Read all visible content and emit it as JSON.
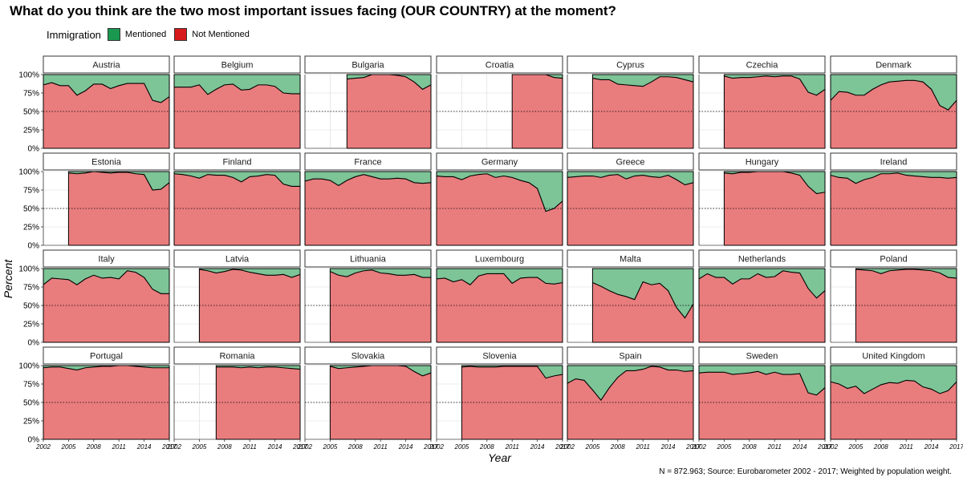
{
  "title": "What do you think are the two most important issues facing (OUR COUNTRY) at the moment?",
  "legend": {
    "title": "Immigration",
    "items": [
      {
        "label": "Mentioned",
        "color": "#1a9850"
      },
      {
        "label": "Not Mentioned",
        "color": "#d7191c"
      }
    ]
  },
  "colors": {
    "mentioned_fill": "#7dc497",
    "not_mentioned_fill": "#e97c7d"
  },
  "caption": "N = 872.963; Source: Eurobarometer 2002 - 2017; Weighted by population weight.",
  "chart_data": {
    "type": "area",
    "facet_layout": "4 rows x 7 columns",
    "xlabel": "Year",
    "ylabel": "Percent",
    "x_ticks": [
      "2002",
      "2005",
      "2008",
      "2011",
      "2014",
      "2017"
    ],
    "y_ticks": [
      "0%",
      "25%",
      "50%",
      "75%",
      "100%"
    ],
    "xlim": [
      2002,
      2017
    ],
    "ylim": [
      0,
      100
    ],
    "reference_line": 50,
    "grid": true,
    "series_note": "values = percent Not Mentioned; remainder to 100% = Mentioned",
    "panels": [
      {
        "country": "Austria",
        "x": [
          2002,
          2003,
          2004,
          2005,
          2006,
          2007,
          2008,
          2009,
          2010,
          2011,
          2012,
          2013,
          2014,
          2015,
          2016,
          2017
        ],
        "values": [
          86,
          89,
          85,
          85,
          72,
          78,
          87,
          87,
          81,
          85,
          88,
          88,
          88,
          65,
          62,
          70
        ]
      },
      {
        "country": "Belgium",
        "x": [
          2002,
          2003,
          2004,
          2005,
          2006,
          2007,
          2008,
          2009,
          2010,
          2011,
          2012,
          2013,
          2014,
          2015,
          2016,
          2017
        ],
        "values": [
          83,
          83,
          83,
          86,
          73,
          80,
          86,
          87,
          79,
          80,
          86,
          86,
          84,
          75,
          74,
          74
        ]
      },
      {
        "country": "Bulgaria",
        "x": [
          2007,
          2008,
          2009,
          2010,
          2011,
          2012,
          2013,
          2014,
          2015,
          2016,
          2017
        ],
        "values": [
          94,
          95,
          96,
          100,
          100,
          100,
          99,
          97,
          90,
          80,
          86
        ]
      },
      {
        "country": "Croatia",
        "x": [
          2011,
          2012,
          2013,
          2014,
          2015,
          2016,
          2017
        ],
        "values": [
          100,
          100,
          100,
          100,
          100,
          96,
          95
        ]
      },
      {
        "country": "Cyprus",
        "x": [
          2005,
          2006,
          2007,
          2008,
          2009,
          2010,
          2011,
          2012,
          2013,
          2014,
          2015,
          2016,
          2017
        ],
        "values": [
          95,
          93,
          93,
          87,
          86,
          85,
          84,
          90,
          97,
          97,
          96,
          93,
          90
        ]
      },
      {
        "country": "Czechia",
        "x": [
          2005,
          2006,
          2007,
          2008,
          2009,
          2010,
          2011,
          2012,
          2013,
          2014,
          2015,
          2016,
          2017
        ],
        "values": [
          98,
          95,
          96,
          96,
          97,
          98,
          97,
          98,
          98,
          94,
          76,
          72,
          80
        ]
      },
      {
        "country": "Denmark",
        "x": [
          2002,
          2003,
          2004,
          2005,
          2006,
          2007,
          2008,
          2009,
          2010,
          2011,
          2012,
          2013,
          2014,
          2015,
          2016,
          2017
        ],
        "values": [
          65,
          77,
          76,
          72,
          72,
          80,
          86,
          90,
          91,
          92,
          92,
          90,
          80,
          58,
          52,
          65
        ]
      },
      {
        "country": "Estonia",
        "x": [
          2005,
          2006,
          2007,
          2008,
          2009,
          2010,
          2011,
          2012,
          2013,
          2014,
          2015,
          2016,
          2017
        ],
        "values": [
          98,
          97,
          98,
          100,
          99,
          98,
          99,
          99,
          97,
          96,
          75,
          76,
          85
        ]
      },
      {
        "country": "Finland",
        "x": [
          2002,
          2003,
          2004,
          2005,
          2006,
          2007,
          2008,
          2009,
          2010,
          2011,
          2012,
          2013,
          2014,
          2015,
          2016,
          2017
        ],
        "values": [
          97,
          96,
          94,
          91,
          96,
          95,
          95,
          92,
          86,
          93,
          94,
          96,
          95,
          83,
          80,
          80
        ]
      },
      {
        "country": "France",
        "x": [
          2002,
          2003,
          2004,
          2005,
          2006,
          2007,
          2008,
          2009,
          2010,
          2011,
          2012,
          2013,
          2014,
          2015,
          2016,
          2017
        ],
        "values": [
          87,
          90,
          90,
          88,
          81,
          88,
          93,
          96,
          93,
          90,
          90,
          91,
          90,
          85,
          84,
          85
        ]
      },
      {
        "country": "Germany",
        "x": [
          2002,
          2003,
          2004,
          2005,
          2006,
          2007,
          2008,
          2009,
          2010,
          2011,
          2012,
          2013,
          2014,
          2015,
          2016,
          2017
        ],
        "values": [
          94,
          93,
          93,
          89,
          94,
          96,
          97,
          92,
          94,
          92,
          88,
          85,
          77,
          46,
          50,
          60
        ]
      },
      {
        "country": "Greece",
        "x": [
          2002,
          2003,
          2004,
          2005,
          2006,
          2007,
          2008,
          2009,
          2010,
          2011,
          2012,
          2013,
          2014,
          2015,
          2016,
          2017
        ],
        "values": [
          92,
          93,
          94,
          94,
          92,
          95,
          96,
          90,
          94,
          95,
          93,
          92,
          95,
          89,
          82,
          85
        ]
      },
      {
        "country": "Hungary",
        "x": [
          2005,
          2006,
          2007,
          2008,
          2009,
          2010,
          2011,
          2012,
          2013,
          2014,
          2015,
          2016,
          2017
        ],
        "values": [
          98,
          97,
          99,
          99,
          100,
          100,
          100,
          100,
          98,
          95,
          80,
          70,
          72
        ]
      },
      {
        "country": "Ireland",
        "x": [
          2002,
          2003,
          2004,
          2005,
          2006,
          2007,
          2008,
          2009,
          2010,
          2011,
          2012,
          2013,
          2014,
          2015,
          2016,
          2017
        ],
        "values": [
          95,
          92,
          91,
          84,
          89,
          92,
          97,
          97,
          98,
          95,
          94,
          93,
          92,
          92,
          91,
          92
        ]
      },
      {
        "country": "Italy",
        "x": [
          2002,
          2003,
          2004,
          2005,
          2006,
          2007,
          2008,
          2009,
          2010,
          2011,
          2012,
          2013,
          2014,
          2015,
          2016,
          2017
        ],
        "values": [
          78,
          87,
          86,
          85,
          78,
          86,
          91,
          87,
          88,
          86,
          97,
          95,
          88,
          72,
          66,
          66
        ]
      },
      {
        "country": "Latvia",
        "x": [
          2005,
          2006,
          2007,
          2008,
          2009,
          2010,
          2011,
          2012,
          2013,
          2014,
          2015,
          2016,
          2017
        ],
        "values": [
          99,
          97,
          94,
          96,
          99,
          98,
          95,
          93,
          91,
          91,
          92,
          88,
          92
        ]
      },
      {
        "country": "Lithuania",
        "x": [
          2005,
          2006,
          2007,
          2008,
          2009,
          2010,
          2011,
          2012,
          2013,
          2014,
          2015,
          2016,
          2017
        ],
        "values": [
          96,
          91,
          89,
          94,
          97,
          98,
          94,
          93,
          91,
          91,
          92,
          88,
          88
        ]
      },
      {
        "country": "Luxembourg",
        "x": [
          2002,
          2003,
          2004,
          2005,
          2006,
          2007,
          2008,
          2009,
          2010,
          2011,
          2012,
          2013,
          2014,
          2015,
          2016,
          2017
        ],
        "values": [
          86,
          87,
          82,
          85,
          78,
          90,
          93,
          93,
          93,
          80,
          87,
          88,
          88,
          80,
          79,
          81
        ]
      },
      {
        "country": "Malta",
        "x": [
          2005,
          2006,
          2007,
          2008,
          2009,
          2010,
          2011,
          2012,
          2013,
          2014,
          2015,
          2016,
          2017
        ],
        "values": [
          81,
          76,
          70,
          65,
          62,
          58,
          82,
          78,
          80,
          70,
          47,
          33,
          52
        ]
      },
      {
        "country": "Netherlands",
        "x": [
          2002,
          2003,
          2004,
          2005,
          2006,
          2007,
          2008,
          2009,
          2010,
          2011,
          2012,
          2013,
          2014,
          2015,
          2016,
          2017
        ],
        "values": [
          86,
          93,
          88,
          88,
          79,
          86,
          86,
          93,
          88,
          89,
          97,
          95,
          94,
          73,
          60,
          70
        ]
      },
      {
        "country": "Poland",
        "x": [
          2005,
          2006,
          2007,
          2008,
          2009,
          2010,
          2011,
          2012,
          2013,
          2014,
          2015,
          2016,
          2017
        ],
        "values": [
          99,
          98,
          97,
          93,
          97,
          98,
          99,
          99,
          98,
          97,
          94,
          88,
          87
        ]
      },
      {
        "country": "Portugal",
        "x": [
          2002,
          2003,
          2004,
          2005,
          2006,
          2007,
          2008,
          2009,
          2010,
          2011,
          2012,
          2013,
          2014,
          2015,
          2016,
          2017
        ],
        "values": [
          97,
          98,
          98,
          96,
          94,
          97,
          98,
          99,
          99,
          100,
          100,
          99,
          98,
          97,
          97,
          97
        ]
      },
      {
        "country": "Romania",
        "x": [
          2007,
          2008,
          2009,
          2010,
          2011,
          2012,
          2013,
          2014,
          2015,
          2016,
          2017
        ],
        "values": [
          98,
          98,
          98,
          97,
          98,
          97,
          98,
          98,
          97,
          96,
          95
        ]
      },
      {
        "country": "Slovakia",
        "x": [
          2005,
          2006,
          2007,
          2008,
          2009,
          2010,
          2011,
          2012,
          2013,
          2014,
          2015,
          2016,
          2017
        ],
        "values": [
          99,
          96,
          97,
          98,
          99,
          100,
          100,
          100,
          100,
          99,
          92,
          86,
          90
        ]
      },
      {
        "country": "Slovenia",
        "x": [
          2005,
          2006,
          2007,
          2008,
          2009,
          2010,
          2011,
          2012,
          2013,
          2014,
          2015,
          2016,
          2017
        ],
        "values": [
          98,
          99,
          98,
          98,
          98,
          99,
          99,
          99,
          99,
          99,
          83,
          86,
          88
        ]
      },
      {
        "country": "Spain",
        "x": [
          2002,
          2003,
          2004,
          2005,
          2006,
          2007,
          2008,
          2009,
          2010,
          2011,
          2012,
          2013,
          2014,
          2015,
          2016,
          2017
        ],
        "values": [
          76,
          82,
          80,
          67,
          53,
          70,
          84,
          93,
          93,
          95,
          99,
          98,
          94,
          94,
          92,
          93
        ]
      },
      {
        "country": "Sweden",
        "x": [
          2002,
          2003,
          2004,
          2005,
          2006,
          2007,
          2008,
          2009,
          2010,
          2011,
          2012,
          2013,
          2014,
          2015,
          2016,
          2017
        ],
        "values": [
          90,
          91,
          91,
          91,
          88,
          89,
          90,
          92,
          88,
          91,
          88,
          88,
          89,
          63,
          60,
          70
        ]
      },
      {
        "country": "United Kingdom",
        "x": [
          2002,
          2003,
          2004,
          2005,
          2006,
          2007,
          2008,
          2009,
          2010,
          2011,
          2012,
          2013,
          2014,
          2015,
          2016,
          2017
        ],
        "values": [
          78,
          75,
          69,
          72,
          62,
          68,
          74,
          77,
          76,
          80,
          79,
          71,
          68,
          62,
          66,
          78
        ]
      }
    ]
  }
}
